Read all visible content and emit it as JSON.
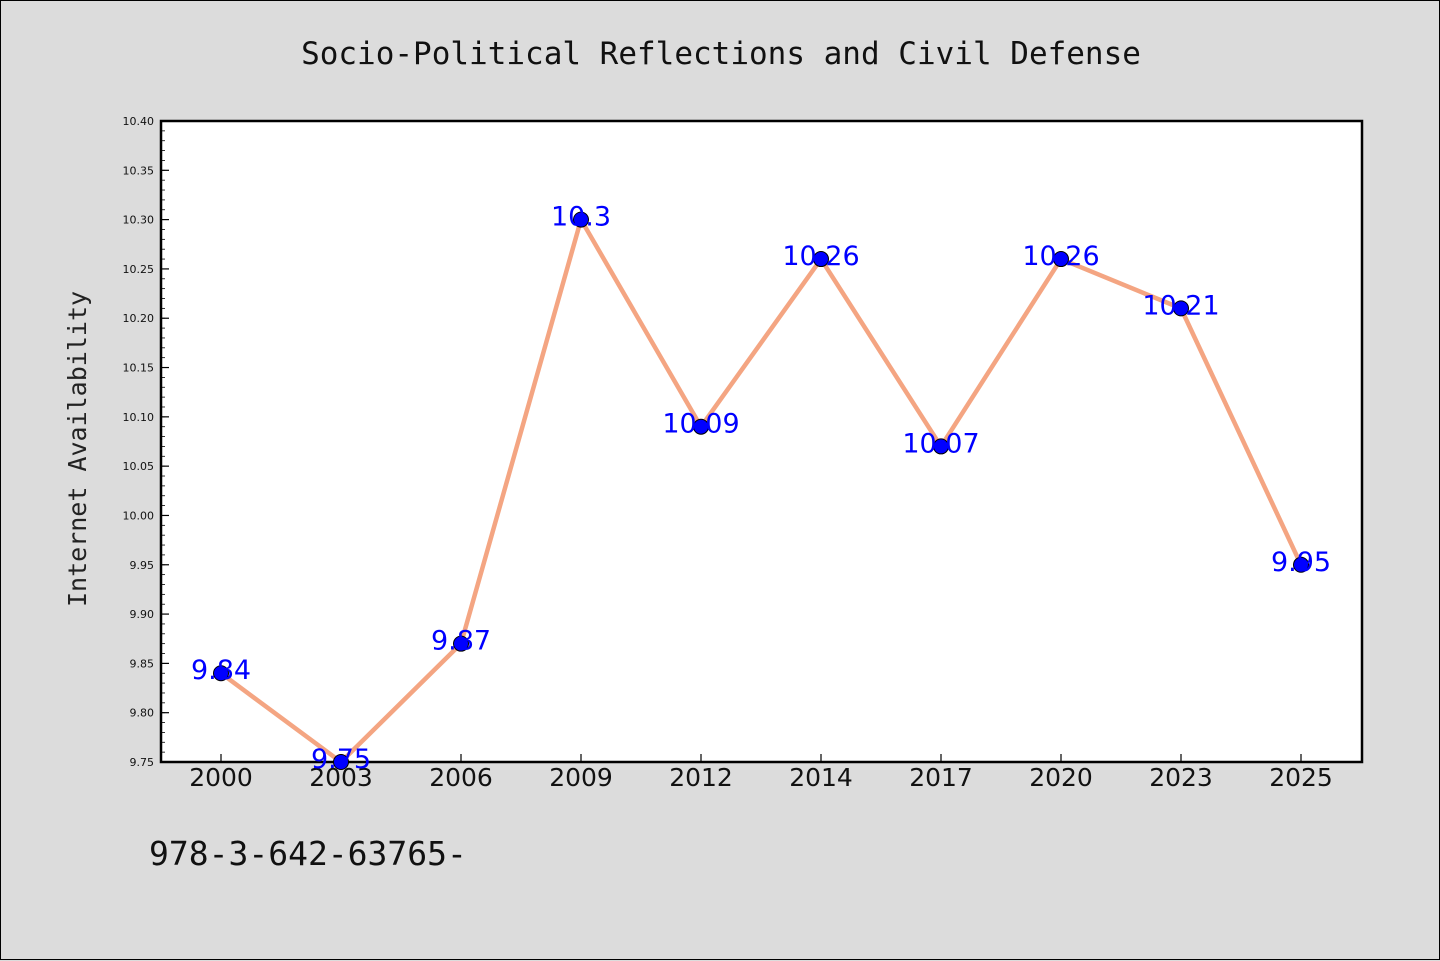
{
  "chart_data": {
    "type": "line",
    "title": "Socio-Political Reflections and Civil Defense",
    "xlabel": "",
    "ylabel": "Internet Availability",
    "categories": [
      "2000",
      "2003",
      "2006",
      "2009",
      "2012",
      "2014",
      "2017",
      "2020",
      "2023",
      "2025"
    ],
    "series": [
      {
        "values": [
          9.84,
          9.75,
          9.87,
          10.3,
          10.09,
          10.26,
          10.07,
          10.26,
          10.21,
          9.95
        ],
        "data_labels": [
          "9.84",
          "9.75",
          "9.87",
          "10.3",
          "10.09",
          "10.26",
          "10.07",
          "10.26",
          "10.21",
          "9.95"
        ],
        "line_color": "#f4a582",
        "marker_color": "#0000ff",
        "label_color": "#0000ff"
      }
    ],
    "ylim": [
      9.75,
      10.4
    ],
    "yticks": [
      "9.75",
      "9.80",
      "9.85",
      "9.90",
      "9.95",
      "10.00",
      "10.05",
      "10.10",
      "10.15",
      "10.20",
      "10.25",
      "10.30",
      "10.35",
      "10.40"
    ],
    "grid": false,
    "legend": "none"
  },
  "footnote": "978-3-642-63765-",
  "colors": {
    "background": "#dcdcdc",
    "plot_area": "#ffffff",
    "axis": "#000000"
  }
}
